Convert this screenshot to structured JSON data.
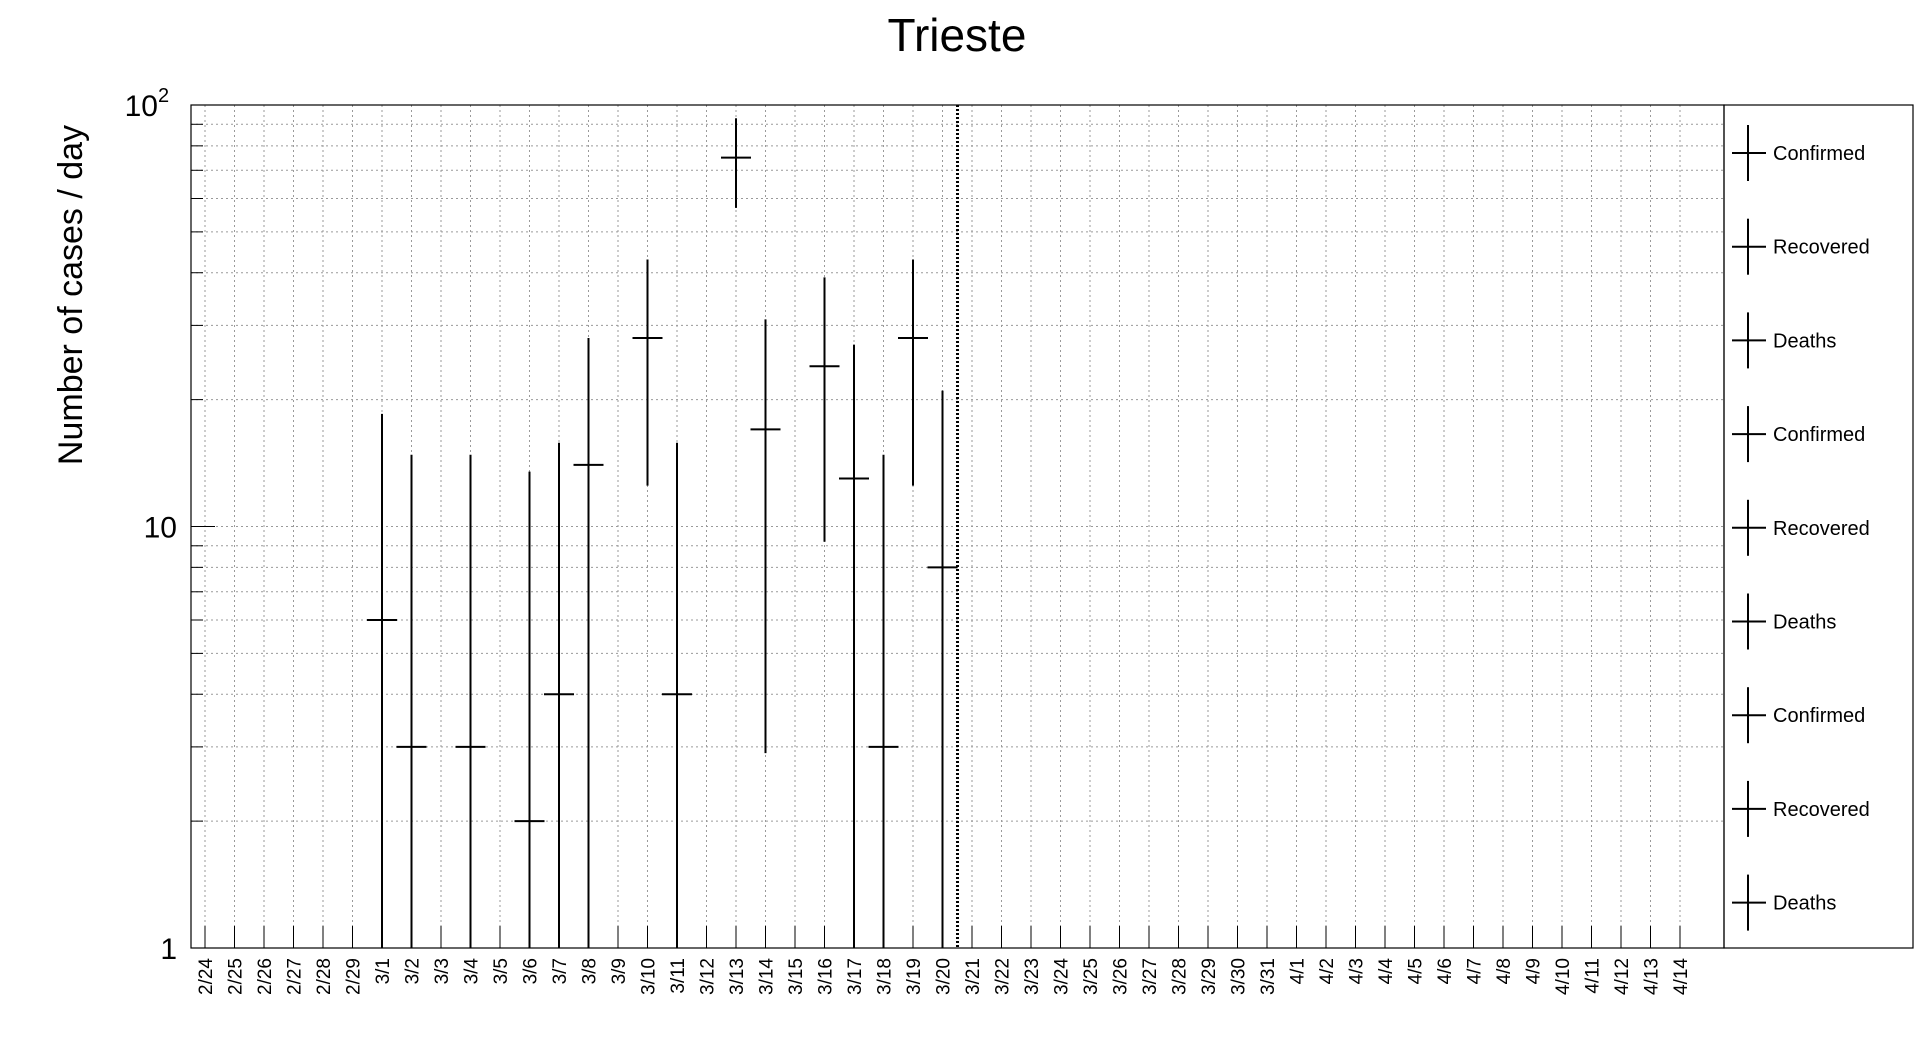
{
  "chart_data": {
    "type": "scatter",
    "title": "Trieste",
    "xlabel": "",
    "ylabel": "Number of cases / day",
    "y_scale": "log",
    "ylim": [
      1,
      100
    ],
    "y_tick_labels": [
      {
        "value": 1,
        "base": "1",
        "exp": ""
      },
      {
        "value": 10,
        "base": "10",
        "exp": ""
      },
      {
        "value": 100,
        "base": "10",
        "exp": "2"
      }
    ],
    "grid": true,
    "legend_position": "right",
    "categories": [
      "2/24",
      "2/25",
      "2/26",
      "2/27",
      "2/28",
      "2/29",
      "3/1",
      "3/2",
      "3/3",
      "3/4",
      "3/5",
      "3/6",
      "3/7",
      "3/8",
      "3/9",
      "3/10",
      "3/11",
      "3/12",
      "3/13",
      "3/14",
      "3/15",
      "3/16",
      "3/17",
      "3/18",
      "3/19",
      "3/20",
      "3/21",
      "3/22",
      "3/23",
      "3/24",
      "3/25",
      "3/26",
      "3/27",
      "3/28",
      "3/29",
      "3/30",
      "3/31",
      "4/1",
      "4/2",
      "4/3",
      "4/4",
      "4/5",
      "4/6",
      "4/7",
      "4/8",
      "4/9",
      "4/10",
      "4/11",
      "4/12",
      "4/13",
      "4/14"
    ],
    "series": [
      {
        "name": "Confirmed",
        "points": [
          {
            "x": "3/1",
            "y": 6,
            "y_low": 1,
            "y_high": 18.5
          },
          {
            "x": "3/2",
            "y": 3,
            "y_low": 1,
            "y_high": 14.8
          },
          {
            "x": "3/4",
            "y": 3,
            "y_low": 1,
            "y_high": 14.8
          },
          {
            "x": "3/6",
            "y": 2,
            "y_low": 1,
            "y_high": 13.5
          },
          {
            "x": "3/7",
            "y": 4,
            "y_low": 1,
            "y_high": 15.8
          },
          {
            "x": "3/8",
            "y": 14,
            "y_low": 1,
            "y_high": 28
          },
          {
            "x": "3/10",
            "y": 28,
            "y_low": 12.5,
            "y_high": 43
          },
          {
            "x": "3/11",
            "y": 4,
            "y_low": 1,
            "y_high": 15.8
          },
          {
            "x": "3/13",
            "y": 75,
            "y_low": 57,
            "y_high": 93
          },
          {
            "x": "3/14",
            "y": 17,
            "y_low": 2.9,
            "y_high": 31
          },
          {
            "x": "3/16",
            "y": 24,
            "y_low": 9.2,
            "y_high": 39
          },
          {
            "x": "3/17",
            "y": 13,
            "y_low": 1,
            "y_high": 27
          },
          {
            "x": "3/18",
            "y": 3,
            "y_low": 1,
            "y_high": 14.8
          },
          {
            "x": "3/19",
            "y": 28,
            "y_low": 12.5,
            "y_high": 43
          },
          {
            "x": "3/20",
            "y": 8,
            "y_low": 1,
            "y_high": 21
          }
        ]
      }
    ],
    "vertical_marker": "3/21",
    "legend": [
      "Confirmed",
      "Recovered",
      "Deaths",
      "Confirmed",
      "Recovered",
      "Deaths",
      "Confirmed",
      "Recovered",
      "Deaths"
    ]
  }
}
